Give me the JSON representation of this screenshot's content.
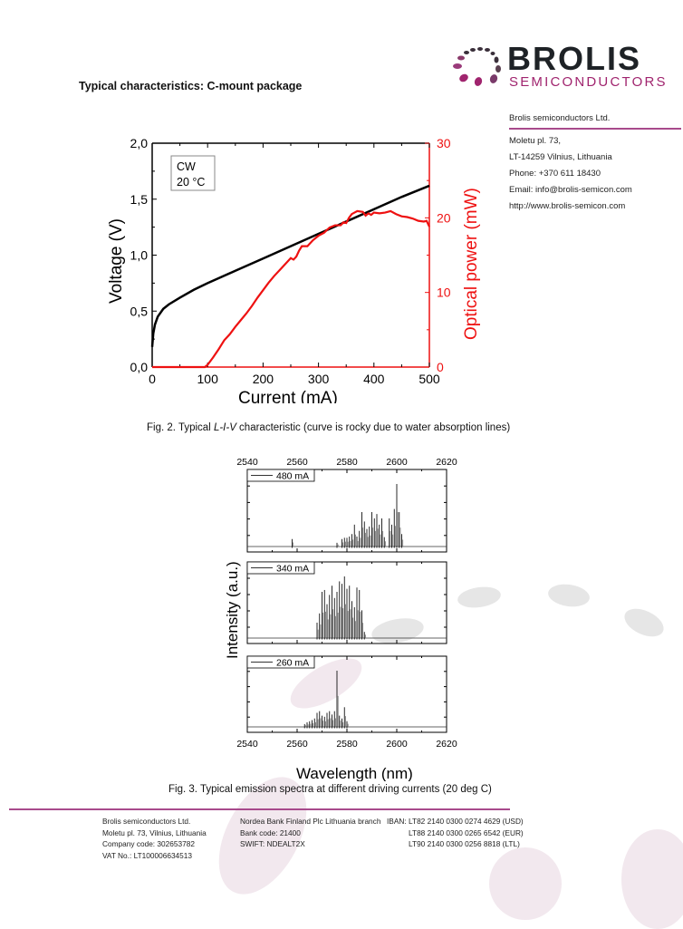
{
  "logo": {
    "wordmark": "BROLIS",
    "subline": "SEMICONDUCTORS",
    "brand_color": "#a0246e",
    "dark_color": "#1e2226"
  },
  "section_title": "Typical characteristics: C-mount package",
  "company_block": {
    "name": "Brolis semiconductors Ltd.",
    "lines": [
      "Moletu pl.  73,",
      "LT-14259 Vilnius, Lithuania",
      "Phone: +370 611 18430",
      "Email: info@brolis-semicon.com",
      "http://www.brolis-semicon.com"
    ]
  },
  "fig2": {
    "caption_prefix": "Fig. 2. Typical ",
    "caption_italic": "L-I-V",
    "caption_suffix": " characteristic (curve is rocky due to water absorption lines)"
  },
  "fig3": {
    "caption": "Fig. 3. Typical emission spectra at different driving currents (20 deg C)"
  },
  "footer": {
    "col1": [
      "Brolis semiconductors Ltd.",
      "Moletu pl. 73, Vilnius, Lithuania",
      "Company code: 302653782",
      "VAT No.: LT100006634513"
    ],
    "col2": [
      "Nordea Bank Finland Plc Lithuania branch",
      "Bank code: 21400",
      "SWIFT: NDEALT2X"
    ],
    "iban_label": "IBAN:",
    "col3": [
      "LT82 2140 0300 0274 4629 (USD)",
      "LT88 2140 0300 0265 6542 (EUR)",
      "LT90 2140 0300 0256 8818 (LTL)"
    ]
  },
  "chart_data": [
    {
      "type": "line",
      "title": "",
      "xlabel": "Current (mA)",
      "ylabel": "Voltage (V)",
      "y2label": "Optical power (mW)",
      "xlim": [
        0,
        500
      ],
      "ylim": [
        0,
        2.0
      ],
      "y2lim": [
        0,
        30
      ],
      "xticks": [
        "0",
        "100",
        "200",
        "300",
        "400",
        "500"
      ],
      "yticks": [
        "0,0",
        "0,5",
        "1,0",
        "1,5",
        "2,0"
      ],
      "y2ticks": [
        "0",
        "10",
        "20",
        "30"
      ],
      "annotation": [
        "CW",
        "20 °C"
      ],
      "grid": false,
      "series": [
        {
          "name": "Voltage",
          "axis": "left",
          "color": "#000000",
          "x": [
            0,
            2,
            5,
            10,
            20,
            30,
            50,
            75,
            100,
            150,
            200,
            250,
            300,
            350,
            400,
            450,
            500
          ],
          "y": [
            0.18,
            0.3,
            0.38,
            0.45,
            0.52,
            0.56,
            0.62,
            0.69,
            0.75,
            0.86,
            0.97,
            1.08,
            1.19,
            1.3,
            1.41,
            1.52,
            1.62
          ]
        },
        {
          "name": "Optical power",
          "axis": "right",
          "color": "#ee1111",
          "x": [
            0,
            95,
            100,
            110,
            120,
            130,
            140,
            150,
            160,
            170,
            180,
            190,
            200,
            210,
            220,
            230,
            240,
            250,
            255,
            260,
            265,
            270,
            280,
            290,
            300,
            310,
            320,
            330,
            340,
            345,
            350,
            355,
            360,
            370,
            380,
            385,
            390,
            395,
            400,
            410,
            420,
            430,
            440,
            450,
            460,
            470,
            480,
            490,
            495,
            500
          ],
          "y": [
            0,
            0,
            0.3,
            1.3,
            2.4,
            3.6,
            4.4,
            5.4,
            6.3,
            7.2,
            8.2,
            9.3,
            10.3,
            11.3,
            12.2,
            13.0,
            13.8,
            14.6,
            14.4,
            14.8,
            15.6,
            16.2,
            16.2,
            17.0,
            17.6,
            18.0,
            18.7,
            19.0,
            19.0,
            19.4,
            19.3,
            20.0,
            20.5,
            20.9,
            20.8,
            20.3,
            20.6,
            20.4,
            20.7,
            20.6,
            20.7,
            20.9,
            20.5,
            20.2,
            20.1,
            19.9,
            19.6,
            19.5,
            19.6,
            18.8
          ]
        }
      ]
    },
    {
      "type": "line",
      "title": "",
      "xlabel": "Wavelength (nm)",
      "ylabel": "Intensity (a.u.)",
      "xlim": [
        2540,
        2620
      ],
      "xticks": [
        "2540",
        "2560",
        "2580",
        "2600",
        "2620"
      ],
      "panels": [
        {
          "legend": "480 mA",
          "peaks": [
            [
              2558,
              0.12
            ],
            [
              2576,
              0.06
            ],
            [
              2578,
              0.12
            ],
            [
              2579,
              0.14
            ],
            [
              2580,
              0.14
            ],
            [
              2581,
              0.16
            ],
            [
              2582,
              0.2
            ],
            [
              2583,
              0.35
            ],
            [
              2584,
              0.16
            ],
            [
              2585,
              0.25
            ],
            [
              2586,
              0.55
            ],
            [
              2587,
              0.4
            ],
            [
              2588,
              0.28
            ],
            [
              2589,
              0.32
            ],
            [
              2590,
              0.55
            ],
            [
              2591,
              0.45
            ],
            [
              2592,
              0.52
            ],
            [
              2593,
              0.35
            ],
            [
              2594,
              0.45
            ],
            [
              2595,
              0.15
            ],
            [
              2597,
              0.45
            ],
            [
              2598,
              0.35
            ],
            [
              2599,
              0.6
            ],
            [
              2600,
              1.0
            ],
            [
              2601,
              0.55
            ],
            [
              2602,
              0.2
            ]
          ]
        },
        {
          "legend": "340 mA",
          "peaks": [
            [
              2568,
              0.25
            ],
            [
              2569,
              0.4
            ],
            [
              2570,
              0.75
            ],
            [
              2571,
              0.78
            ],
            [
              2572,
              0.55
            ],
            [
              2573,
              0.7
            ],
            [
              2574,
              0.85
            ],
            [
              2575,
              0.65
            ],
            [
              2576,
              0.75
            ],
            [
              2577,
              0.92
            ],
            [
              2578,
              0.88
            ],
            [
              2579,
              1.0
            ],
            [
              2580,
              0.8
            ],
            [
              2581,
              0.85
            ],
            [
              2582,
              0.6
            ],
            [
              2583,
              0.5
            ],
            [
              2584,
              0.82
            ],
            [
              2585,
              0.78
            ],
            [
              2586,
              0.45
            ],
            [
              2587,
              0.1
            ]
          ]
        },
        {
          "legend": "260 mA",
          "peaks": [
            [
              2563,
              0.05
            ],
            [
              2564,
              0.08
            ],
            [
              2565,
              0.1
            ],
            [
              2566,
              0.12
            ],
            [
              2567,
              0.15
            ],
            [
              2568,
              0.25
            ],
            [
              2569,
              0.28
            ],
            [
              2570,
              0.2
            ],
            [
              2571,
              0.18
            ],
            [
              2572,
              0.25
            ],
            [
              2573,
              0.28
            ],
            [
              2574,
              0.22
            ],
            [
              2575,
              0.28
            ],
            [
              2576,
              1.0
            ],
            [
              2577,
              0.2
            ],
            [
              2578,
              0.15
            ],
            [
              2579,
              0.35
            ],
            [
              2580,
              0.1
            ]
          ]
        }
      ]
    }
  ]
}
